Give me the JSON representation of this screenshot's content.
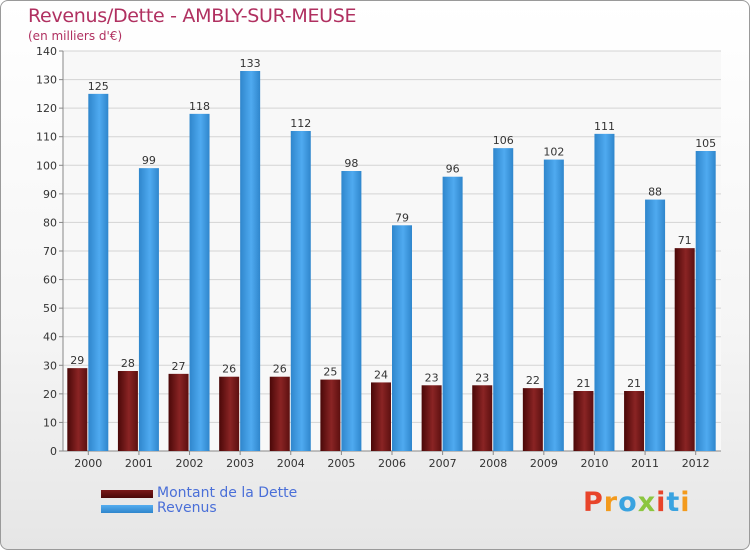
{
  "chart_data": {
    "type": "bar",
    "title": "Revenus/Dette - AMBLY-SUR-MEUSE",
    "subtitle": "(en milliers d'€)",
    "categories": [
      "2000",
      "2001",
      "2002",
      "2003",
      "2004",
      "2005",
      "2006",
      "2007",
      "2008",
      "2009",
      "2010",
      "2011",
      "2012"
    ],
    "series": [
      {
        "name": "Montant de la Dette",
        "color": "#7a1a1a",
        "values": [
          29,
          28,
          27,
          26,
          26,
          25,
          24,
          23,
          23,
          22,
          21,
          21,
          71
        ]
      },
      {
        "name": "Revenus",
        "color": "#3d9be3",
        "values": [
          125,
          99,
          118,
          133,
          112,
          98,
          79,
          96,
          106,
          102,
          111,
          88,
          105
        ]
      }
    ],
    "ylim": [
      0,
      140
    ],
    "yticks": [
      0,
      10,
      20,
      30,
      40,
      50,
      60,
      70,
      80,
      90,
      100,
      110,
      120,
      130,
      140
    ],
    "grid": true,
    "legend_position": "bottom-left",
    "data_labels": true
  },
  "logo": {
    "text": "Proxiti",
    "colors": [
      "#e8442a",
      "#f39a1c",
      "#3aa3e0",
      "#8cc63f",
      "#e8442a",
      "#3aa3e0",
      "#f39a1c"
    ]
  }
}
